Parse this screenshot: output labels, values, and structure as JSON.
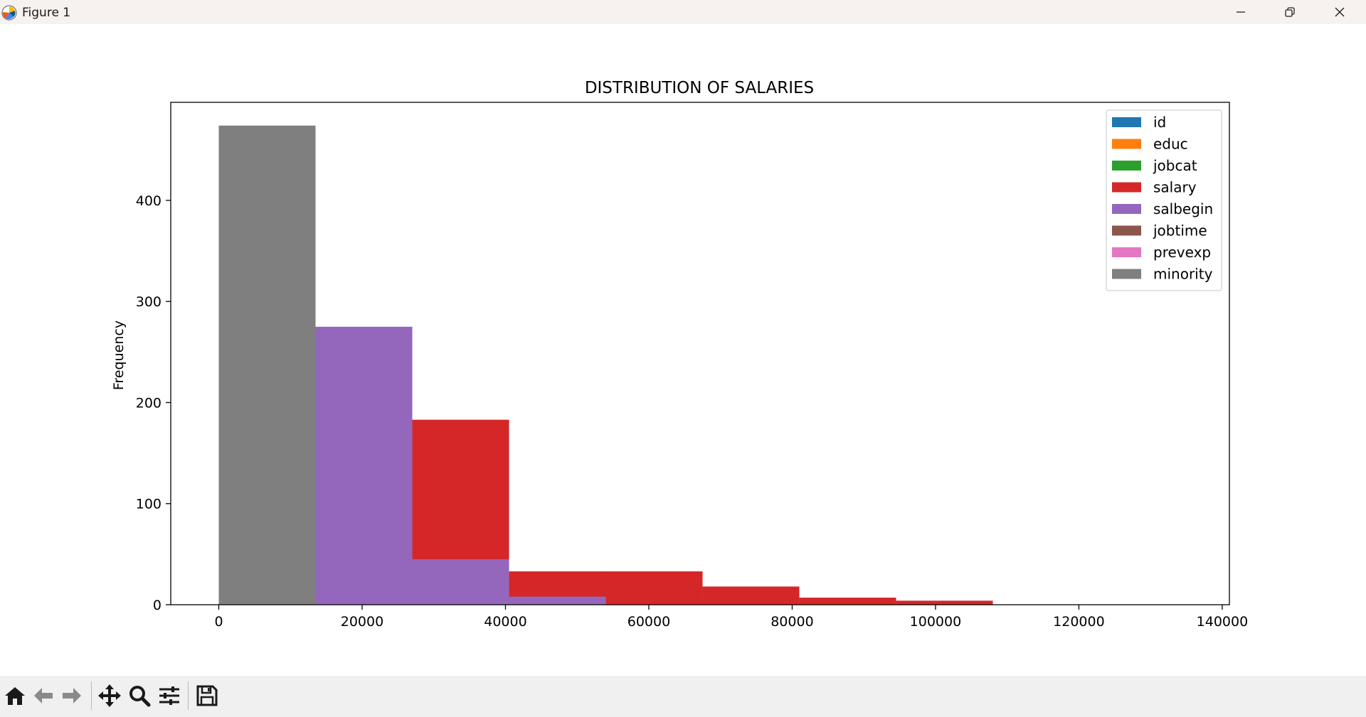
{
  "window": {
    "title": "Figure 1",
    "icons": {
      "app": "matplotlib-logo-icon",
      "minimize": "minimize-icon",
      "maximize": "restore-icon",
      "close": "close-icon"
    }
  },
  "toolbar": {
    "items": [
      {
        "name": "home-button",
        "icon": "home-icon"
      },
      {
        "name": "back-button",
        "icon": "arrow-left-icon"
      },
      {
        "name": "forward-button",
        "icon": "arrow-right-icon"
      },
      {
        "name": "pan-button",
        "icon": "move-icon"
      },
      {
        "name": "zoom-button",
        "icon": "magnifier-icon"
      },
      {
        "name": "configure-subplots-button",
        "icon": "sliders-icon"
      },
      {
        "name": "save-button",
        "icon": "floppy-disk-icon"
      }
    ]
  },
  "chart_data": {
    "type": "bar",
    "title": "DISTRIBUTION OF SALARIES",
    "xlabel": "",
    "ylabel": "Frequency",
    "xlim": [
      -6700,
      141000
    ],
    "ylim": [
      0,
      497
    ],
    "xticks": [
      0,
      20000,
      40000,
      60000,
      80000,
      100000,
      120000,
      140000
    ],
    "xtick_labels": [
      "0",
      "20000",
      "40000",
      "60000",
      "80000",
      "100000",
      "120000",
      "140000"
    ],
    "yticks": [
      0,
      100,
      200,
      300,
      400
    ],
    "ytick_labels": [
      "0",
      "100",
      "200",
      "300",
      "400"
    ],
    "grid": false,
    "legend_position": "top-right",
    "legend": [
      {
        "label": "id",
        "color": "#1f77b4"
      },
      {
        "label": "educ",
        "color": "#ff7f0e"
      },
      {
        "label": "jobcat",
        "color": "#2ca02c"
      },
      {
        "label": "salary",
        "color": "#d62728"
      },
      {
        "label": "salbegin",
        "color": "#9467bd"
      },
      {
        "label": "jobtime",
        "color": "#8c564b"
      },
      {
        "label": "prevexp",
        "color": "#e377c2"
      },
      {
        "label": "minority",
        "color": "#7f7f7f"
      }
    ],
    "bin_edges": [
      0,
      13500,
      27000,
      40500,
      54000,
      67500,
      81000,
      94500,
      108000,
      121500,
      135000
    ],
    "series": [
      {
        "name": "salary",
        "color": "#d62728",
        "counts": [
          0,
          0,
          183,
          33,
          33,
          18,
          7,
          4,
          0,
          0
        ]
      },
      {
        "name": "salbegin",
        "color": "#9467bd",
        "counts": [
          0,
          275,
          45,
          8,
          0,
          0,
          0,
          0,
          0,
          0
        ]
      },
      {
        "name": "minority",
        "color": "#7f7f7f",
        "counts": [
          474,
          0,
          0,
          0,
          0,
          0,
          0,
          0,
          0,
          0
        ]
      }
    ]
  }
}
